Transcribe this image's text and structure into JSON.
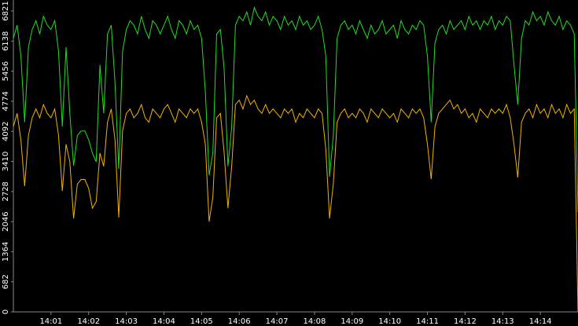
{
  "chart_data": {
    "type": "line",
    "x": [
      0,
      0.1,
      0.2,
      0.3,
      0.4,
      0.5,
      0.6,
      0.7,
      0.8,
      0.9,
      1,
      1.1,
      1.2,
      1.3,
      1.4,
      1.5,
      1.6,
      1.7,
      1.8,
      1.9,
      2,
      2.1,
      2.2,
      2.3,
      2.4,
      2.5,
      2.6,
      2.7,
      2.8,
      2.9,
      3,
      3.1,
      3.2,
      3.3,
      3.4,
      3.5,
      3.6,
      3.7,
      3.8,
      3.9,
      4,
      4.1,
      4.2,
      4.3,
      4.4,
      4.5,
      4.6,
      4.7,
      4.8,
      4.9,
      5,
      5.1,
      5.2,
      5.3,
      5.4,
      5.5,
      5.6,
      5.7,
      5.8,
      5.9,
      6,
      6.1,
      6.2,
      6.3,
      6.4,
      6.5,
      6.6,
      6.7,
      6.8,
      6.9,
      7,
      7.1,
      7.2,
      7.3,
      7.4,
      7.5,
      7.6,
      7.7,
      7.8,
      7.9,
      8,
      8.1,
      8.2,
      8.3,
      8.4,
      8.5,
      8.6,
      8.7,
      8.8,
      8.9,
      9,
      9.1,
      9.2,
      9.3,
      9.4,
      9.5,
      9.6,
      9.7,
      9.8,
      9.9,
      10,
      10.1,
      10.2,
      10.3,
      10.4,
      10.5,
      10.6,
      10.7,
      10.8,
      10.9,
      11,
      11.1,
      11.2,
      11.3,
      11.4,
      11.5,
      11.6,
      11.7,
      11.8,
      11.9,
      12,
      12.1,
      12.2,
      12.3,
      12.4,
      12.5,
      12.6,
      12.7,
      12.8,
      12.9,
      13,
      13.1,
      13.2,
      13.3,
      13.4,
      13.5,
      13.6,
      13.7,
      13.8,
      13.9,
      14,
      14.1,
      14.2,
      14.3,
      14.4,
      14.5,
      14.6,
      14.7,
      14.8,
      14.9,
      15
    ],
    "series": [
      {
        "color": "#f0b400",
        "values": [
          4200,
          4500,
          3900,
          2850,
          4000,
          4400,
          4600,
          4400,
          4700,
          4500,
          4400,
          4600,
          4000,
          2740,
          3800,
          3400,
          2119,
          2900,
          3000,
          3000,
          2800,
          2350,
          2500,
          3600,
          3300,
          4300,
          4600,
          3900,
          2137,
          4100,
          4500,
          4600,
          4400,
          4500,
          4700,
          4400,
          4300,
          4600,
          4500,
          4400,
          4600,
          4700,
          4500,
          4300,
          4600,
          4500,
          4400,
          4600,
          4500,
          4600,
          4300,
          3800,
          2048,
          2600,
          4400,
          4500,
          3600,
          2351,
          3300,
          4700,
          4800,
          4600,
          4900,
          4700,
          4800,
          4600,
          4500,
          4700,
          4500,
          4600,
          4500,
          4400,
          4600,
          4500,
          4600,
          4300,
          4500,
          4400,
          4600,
          4500,
          4400,
          4600,
          4500,
          3700,
          2119,
          2900,
          4300,
          4500,
          4600,
          4400,
          4500,
          4400,
          4600,
          4500,
          4300,
          4600,
          4500,
          4400,
          4600,
          4500,
          4400,
          4500,
          4300,
          4600,
          4500,
          4400,
          4600,
          4500,
          4600,
          4400,
          3800,
          3010,
          4200,
          4500,
          4600,
          4700,
          4800,
          4600,
          4700,
          4500,
          4600,
          4400,
          4500,
          4300,
          4600,
          4500,
          4400,
          4600,
          4500,
          4600,
          4500,
          4700,
          4400,
          3800,
          3045,
          4300,
          4500,
          4600,
          4400,
          4700,
          4500,
          4600,
          4400,
          4700,
          4500,
          4600,
          4400,
          4700,
          4500,
          4600,
          0
        ]
      },
      {
        "color": "#22dd22",
        "values": [
          6200,
          6500,
          5800,
          4300,
          6000,
          6400,
          6600,
          6300,
          6700,
          6500,
          6400,
          6600,
          5900,
          4200,
          6000,
          4500,
          3312,
          4000,
          4100,
          4100,
          3900,
          3600,
          3400,
          5600,
          4500,
          6300,
          6500,
          5200,
          3241,
          5900,
          6400,
          6600,
          6500,
          6300,
          6700,
          6400,
          6200,
          6600,
          6500,
          6300,
          6500,
          6700,
          6400,
          6200,
          6600,
          6500,
          6300,
          6600,
          6400,
          6500,
          6200,
          5000,
          3099,
          3600,
          6300,
          6400,
          5500,
          3300,
          4200,
          6500,
          6700,
          6600,
          6800,
          6500,
          6900,
          6700,
          6600,
          6800,
          6500,
          6700,
          6600,
          6400,
          6700,
          6500,
          6600,
          6400,
          6700,
          6500,
          6600,
          6400,
          6500,
          6700,
          6400,
          5800,
          3063,
          4000,
          6200,
          6500,
          6600,
          6400,
          6500,
          6300,
          6600,
          6400,
          6200,
          6500,
          6300,
          6400,
          6600,
          6300,
          6400,
          6500,
          6200,
          6600,
          6400,
          6300,
          6500,
          6400,
          6600,
          6500,
          5800,
          4300,
          6100,
          6400,
          6500,
          6300,
          6600,
          6400,
          6500,
          6600,
          6400,
          6700,
          6500,
          6600,
          6400,
          6600,
          6500,
          6700,
          6400,
          6600,
          6500,
          6700,
          6600,
          5600,
          4700,
          6200,
          6600,
          6500,
          6800,
          6600,
          6700,
          6500,
          6800,
          6600,
          6500,
          6700,
          6400,
          6600,
          6500,
          6300,
          2262
        ]
      }
    ],
    "xlim": [
      0,
      15
    ],
    "xticks": [
      {
        "value": 1,
        "label": "14:01"
      },
      {
        "value": 2,
        "label": "14:02"
      },
      {
        "value": 3,
        "label": "14:03"
      },
      {
        "value": 4,
        "label": "14:04"
      },
      {
        "value": 5,
        "label": "14:05"
      },
      {
        "value": 6,
        "label": "14:06"
      },
      {
        "value": 7,
        "label": "14:07"
      },
      {
        "value": 8,
        "label": "14:08"
      },
      {
        "value": 9,
        "label": "14:09"
      },
      {
        "value": 10,
        "label": "14:10"
      },
      {
        "value": 11,
        "label": "14:11"
      },
      {
        "value": 12,
        "label": "14:12"
      },
      {
        "value": 13,
        "label": "14:13"
      },
      {
        "value": 14,
        "label": "14:14"
      }
    ],
    "ylim": [
      0,
      7070
    ],
    "yticks": [
      0,
      682,
      1364,
      2046,
      2728,
      3410,
      4092,
      4774,
      5456,
      6138,
      6821
    ]
  }
}
